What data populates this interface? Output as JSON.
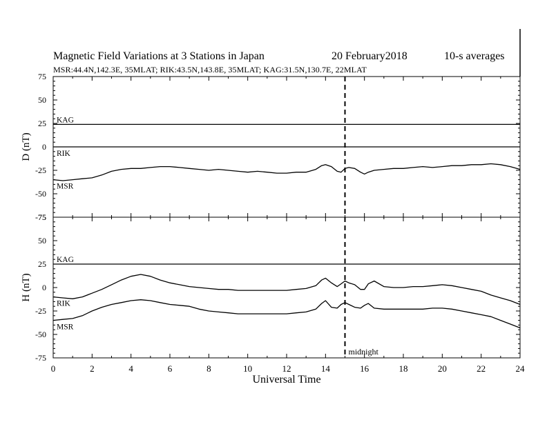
{
  "header": {
    "title": "Magnetic Field Variations at 3 Stations in Japan",
    "date": "20 February2018",
    "averaging": "10-s averages",
    "stations": "MSR:44.4N,142.3E, 35MLAT;  RIK:43.5N,143.8E, 35MLAT;  KAG:31.5N,130.7E, 22MLAT"
  },
  "chart_data": [
    {
      "type": "line",
      "ylabel": "D (nT)",
      "ylim": [
        -75,
        75
      ],
      "yticks": [
        75,
        50,
        25,
        0,
        -25,
        -50,
        -75
      ],
      "xlim": [
        0,
        24
      ],
      "series": [
        {
          "name": "KAG",
          "x": [
            0,
            6,
            12,
            19.5,
            24
          ],
          "y": [
            24,
            24,
            24,
            24,
            24
          ]
        },
        {
          "name": "RIK",
          "x": [
            0,
            6,
            12,
            18,
            24
          ],
          "y": [
            0,
            0,
            0,
            0,
            0
          ]
        },
        {
          "name": "MSR",
          "x": [
            0,
            0.5,
            1,
            1.5,
            2,
            2.5,
            3,
            3.5,
            4,
            4.5,
            5,
            5.5,
            6,
            6.5,
            7,
            7.5,
            8,
            8.5,
            9,
            9.5,
            10,
            10.5,
            11,
            11.5,
            12,
            12.5,
            13,
            13.5,
            13.8,
            14,
            14.3,
            14.6,
            14.8,
            15,
            15.2,
            15.5,
            15.8,
            16,
            16.2,
            16.5,
            17,
            17.5,
            18,
            18.5,
            19,
            19.5,
            20,
            20.5,
            21,
            21.5,
            22,
            22.5,
            23,
            23.5,
            24
          ],
          "y": [
            -35,
            -36,
            -35,
            -34,
            -33,
            -30,
            -26,
            -24,
            -23,
            -23,
            -22,
            -21,
            -21,
            -22,
            -23,
            -24,
            -25,
            -24,
            -25,
            -26,
            -27,
            -26,
            -27,
            -28,
            -28,
            -27,
            -27,
            -24,
            -20,
            -19,
            -21,
            -26,
            -27,
            -23,
            -22,
            -23,
            -27,
            -29,
            -27,
            -25,
            -24,
            -23,
            -23,
            -22,
            -21,
            -22,
            -21,
            -20,
            -20,
            -19,
            -19,
            -18,
            -19,
            -21,
            -24
          ]
        }
      ]
    },
    {
      "type": "line",
      "ylabel": "H (nT)",
      "xlabel": "Universal Time",
      "ylim": [
        -75,
        75
      ],
      "yticks": [
        75,
        50,
        25,
        0,
        -25,
        -50,
        -75
      ],
      "xlim": [
        0,
        24
      ],
      "xticks": [
        0,
        2,
        4,
        6,
        8,
        10,
        12,
        14,
        16,
        18,
        20,
        22,
        24
      ],
      "annotation": {
        "x": 15,
        "label": "midnight"
      },
      "series": [
        {
          "name": "KAG",
          "x": [
            0,
            6,
            12,
            19.5,
            24
          ],
          "y": [
            25,
            25,
            25,
            25,
            25
          ]
        },
        {
          "name": "RIK",
          "x": [
            0,
            0.5,
            1,
            1.5,
            2,
            2.5,
            3,
            3.5,
            4,
            4.5,
            5,
            5.5,
            6,
            6.5,
            7,
            7.5,
            8,
            8.5,
            9,
            9.5,
            10,
            10.5,
            11,
            11.5,
            12,
            12.5,
            13,
            13.5,
            13.8,
            14,
            14.3,
            14.6,
            14.8,
            15,
            15.2,
            15.5,
            15.8,
            16,
            16.2,
            16.5,
            17,
            17.5,
            18,
            18.5,
            19,
            19.5,
            20,
            20.5,
            21,
            21.5,
            22,
            22.5,
            23,
            23.5,
            24
          ],
          "y": [
            -10,
            -11,
            -12,
            -10,
            -6,
            -2,
            3,
            8,
            12,
            14,
            12,
            8,
            5,
            3,
            1,
            0,
            -1,
            -2,
            -2,
            -3,
            -3,
            -3,
            -3,
            -3,
            -3,
            -2,
            -1,
            2,
            8,
            10,
            5,
            1,
            4,
            7,
            5,
            3,
            -2,
            -2,
            4,
            7,
            1,
            0,
            0,
            1,
            1,
            2,
            3,
            2,
            0,
            -2,
            -4,
            -8,
            -11,
            -14,
            -18
          ]
        },
        {
          "name": "MSR",
          "x": [
            0,
            0.5,
            1,
            1.5,
            2,
            2.5,
            3,
            3.5,
            4,
            4.5,
            5,
            5.5,
            6,
            6.5,
            7,
            7.5,
            8,
            8.5,
            9,
            9.5,
            10,
            10.5,
            11,
            11.5,
            12,
            12.5,
            13,
            13.5,
            13.8,
            14,
            14.3,
            14.6,
            14.8,
            15,
            15.2,
            15.5,
            15.8,
            16,
            16.2,
            16.5,
            17,
            17.5,
            18,
            18.5,
            19,
            19.5,
            20,
            20.5,
            21,
            21.5,
            22,
            22.5,
            23,
            23.5,
            24
          ],
          "y": [
            -35,
            -34,
            -33,
            -30,
            -25,
            -21,
            -18,
            -16,
            -14,
            -13,
            -14,
            -16,
            -18,
            -19,
            -20,
            -23,
            -25,
            -26,
            -27,
            -28,
            -28,
            -28,
            -28,
            -28,
            -28,
            -27,
            -26,
            -23,
            -17,
            -14,
            -21,
            -22,
            -18,
            -16,
            -18,
            -21,
            -22,
            -19,
            -17,
            -22,
            -23,
            -23,
            -23,
            -23,
            -23,
            -22,
            -22,
            -23,
            -25,
            -27,
            -29,
            -31,
            -35,
            -39,
            -43
          ]
        }
      ]
    }
  ]
}
